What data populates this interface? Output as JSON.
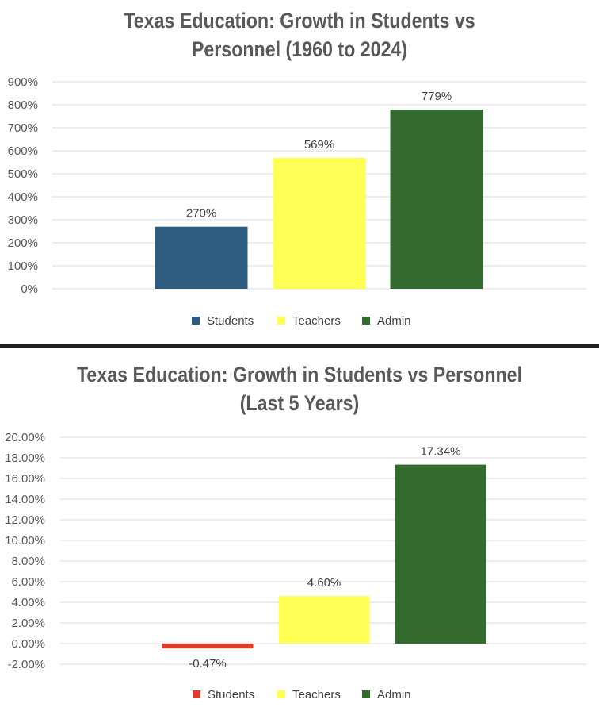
{
  "chart_data": [
    {
      "type": "bar",
      "title": "Texas Education: Growth in Students vs Personnel (1960 to 2024)",
      "title_lines": [
        "Texas Education: Growth in Students vs",
        "Personnel (1960 to 2024)"
      ],
      "categories": [
        "Students",
        "Teachers",
        "Admin"
      ],
      "values": [
        270,
        569,
        779
      ],
      "data_labels": [
        "270%",
        "569%",
        "779%"
      ],
      "colors": [
        "#2e5c80",
        "#ffff55",
        "#336b2e"
      ],
      "ylim": [
        0,
        900
      ],
      "ytick_step": 100,
      "ytick_labels": [
        "900%",
        "800%",
        "700%",
        "600%",
        "500%",
        "400%",
        "300%",
        "200%",
        "100%",
        "0%"
      ],
      "legend": [
        "Students",
        "Teachers",
        "Admin"
      ],
      "legend_position": "bottom",
      "grid": true
    },
    {
      "type": "bar",
      "title": "Texas Education: Growth in Students vs Personnel (Last 5 Years)",
      "title_lines": [
        "Texas Education: Growth in Students vs Personnel",
        "(Last 5 Years)"
      ],
      "categories": [
        "Students",
        "Teachers",
        "Admin"
      ],
      "values": [
        -0.47,
        4.6,
        17.34
      ],
      "data_labels": [
        "-0.47%",
        "4.60%",
        "17.34%"
      ],
      "colors": [
        "#e03a2a",
        "#ffff55",
        "#336b2e"
      ],
      "ylim": [
        -2,
        20
      ],
      "ytick_step": 2,
      "ytick_labels": [
        "20.00%",
        "18.00%",
        "16.00%",
        "14.00%",
        "12.00%",
        "10.00%",
        "8.00%",
        "6.00%",
        "4.00%",
        "2.00%",
        "0.00%",
        "-2.00%"
      ],
      "legend": [
        "Students",
        "Teachers",
        "Admin"
      ],
      "legend_position": "bottom",
      "grid": true
    }
  ]
}
